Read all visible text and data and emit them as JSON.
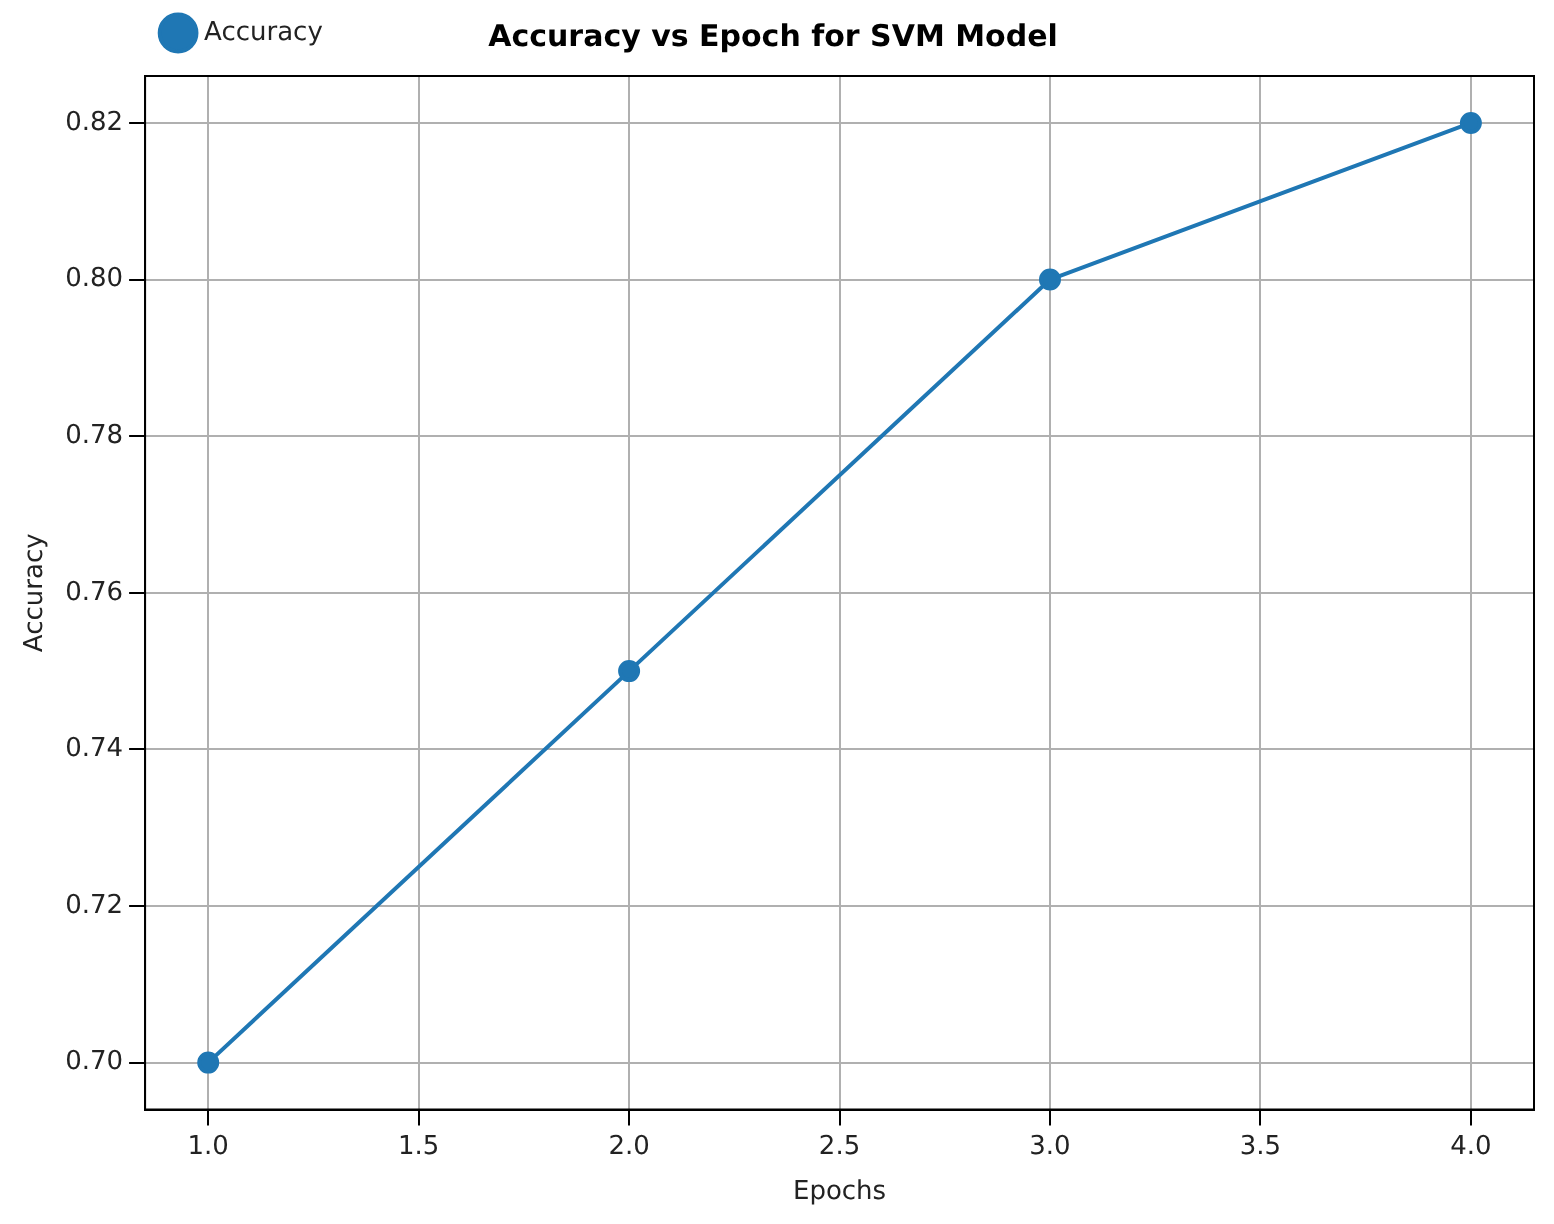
{
  "chart_data": {
    "type": "line",
    "title": "Accuracy vs Epoch for SVM Model",
    "xlabel": "Epochs",
    "ylabel": "Accuracy",
    "x": [
      1,
      2,
      3,
      4
    ],
    "series": [
      {
        "name": "Accuracy",
        "color": "#1f77b4",
        "values": [
          0.7,
          0.75,
          0.8,
          0.82
        ]
      }
    ],
    "xlim": [
      0.85,
      4.15
    ],
    "xticks": [
      {
        "value": 1,
        "label": "1.0"
      },
      {
        "value": 1.5,
        "label": "1.5"
      },
      {
        "value": 2,
        "label": "2.0"
      },
      {
        "value": 2.5,
        "label": "2.5"
      },
      {
        "value": 3,
        "label": "3.0"
      },
      {
        "value": 3.5,
        "label": "3.5"
      },
      {
        "value": 4,
        "label": "4.0"
      }
    ],
    "ylim": [
      0.694,
      0.826
    ],
    "yticks": [
      {
        "value": 0.7,
        "label": "0.70"
      },
      {
        "value": 0.72,
        "label": "0.72"
      },
      {
        "value": 0.74,
        "label": "0.74"
      },
      {
        "value": 0.76,
        "label": "0.76"
      },
      {
        "value": 0.78,
        "label": "0.78"
      },
      {
        "value": 0.8,
        "label": "0.80"
      },
      {
        "value": 0.82,
        "label": "0.82"
      }
    ],
    "grid": true,
    "legend": "top left",
    "marker": "circle",
    "line_style": "solid"
  }
}
